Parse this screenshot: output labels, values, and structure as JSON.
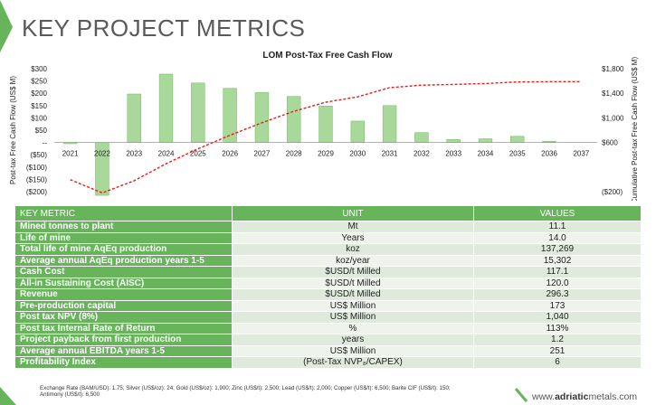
{
  "header": {
    "title": "KEY PROJECT METRICS"
  },
  "chart_data": {
    "type": "bar",
    "title": "LOM Post-Tax Free Cash Flow",
    "ylabel": "Post-tax Free Cash Flow (US$ M)",
    "y2label": "Cumulative Post-tax Free Cash Flow (US$ M)",
    "categories": [
      "2021",
      "2022",
      "2023",
      "2024",
      "2025",
      "2026",
      "2027",
      "2028",
      "2029",
      "2030",
      "2031",
      "2032",
      "2033",
      "2034",
      "2035",
      "2036",
      "2037"
    ],
    "ylim": [
      -200,
      300
    ],
    "yticks": [
      "$300",
      "$250",
      "$200",
      "$150",
      "$100",
      "$50",
      "--",
      "($50)",
      "($100)",
      "($150)",
      "($200)"
    ],
    "y2lim": [
      -200,
      1800
    ],
    "y2ticks": [
      "$1,800",
      "$1,400",
      "$1,000",
      "$600",
      "($200)"
    ],
    "series": [
      {
        "type": "bar",
        "color": "#a8d89a",
        "values": [
          -5,
          -215,
          197,
          278,
          242,
          220,
          203,
          187,
          148,
          87,
          150,
          40,
          12,
          15,
          25,
          5,
          0
        ]
      },
      {
        "type": "line",
        "axis": "secondary",
        "color": "#e0201b",
        "values": [
          -5,
          -220,
          -23,
          255,
          497,
          717,
          920,
          1107,
          1255,
          1342,
          1492,
          1532,
          1544,
          1559,
          1584,
          1589,
          1589
        ]
      }
    ]
  },
  "table": {
    "headers": [
      "KEY METRIC",
      "UNIT",
      "VALUES"
    ],
    "rows": [
      [
        "Mined tonnes to plant",
        "Mt",
        "11.1"
      ],
      [
        "Life of mine",
        "Years",
        "14.0"
      ],
      [
        "Total life of mine AqEq production",
        "koz",
        "137,269"
      ],
      [
        "Average annual AqEq production years 1-5",
        "koz/year",
        "15,302"
      ],
      [
        "Cash Cost",
        "$USD/t Milled",
        "117.1"
      ],
      [
        "All-in Sustaining Cost (AISC)",
        "$USD/t Milled",
        "120.0"
      ],
      [
        "Revenue",
        "$USD/t Milled",
        "296.3"
      ],
      [
        "Pre-production capital",
        "US$ Million",
        "173"
      ],
      [
        "Post tax NPV (8%)",
        "US$ Million",
        "1,040"
      ],
      [
        "Post tax Internal Rate of Return",
        "%",
        "113%"
      ],
      [
        "Project payback from first production",
        "years",
        "1.2"
      ],
      [
        "Average annual EBITDA years 1-5",
        "US$ Million",
        "251"
      ],
      [
        "Profitability Index",
        "(Post-Tax NVP₈/CAPEX)",
        "6"
      ]
    ]
  },
  "footer": {
    "note": "Exchange Rate (BAM/USD): 1.75; Silver (US$/oz): 24; Gold (US$/oz): 1,900; Zinc (US$/t): 2,500; Lead (US$/t): 2,000; Copper (US$/t): 6,500; Barite CIF (US$/t): 150; Antimony (US$/t): 6,500",
    "website_prefix": "www.",
    "website_brand": "adriatic",
    "website_suffix": "metals.com"
  },
  "colors": {
    "accent": "#67b45b",
    "bar": "#a8d89a",
    "line": "#e0201b"
  }
}
